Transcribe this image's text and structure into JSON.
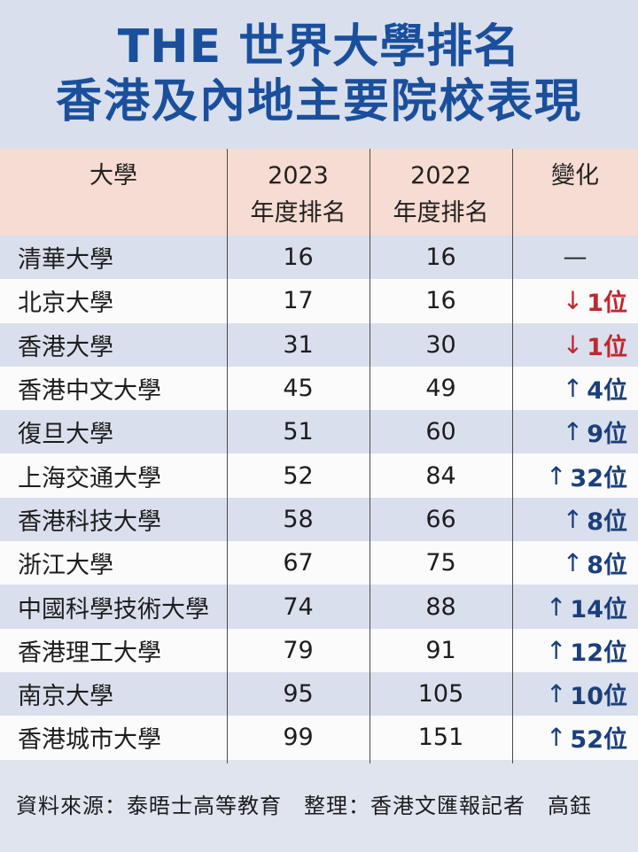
{
  "title": {
    "line1": "THE 世界大學排名",
    "line2": "香港及內地主要院校表現"
  },
  "table": {
    "headers": {
      "name": "大學",
      "rank_2023_year": "2023",
      "rank_2023_label": "年度排名",
      "rank_2022_year": "2022",
      "rank_2022_label": "年度排名",
      "change": "變化"
    },
    "rows": [
      {
        "name": "清華大學",
        "r2023": "16",
        "r2022": "16",
        "dir": "same",
        "arrow": "",
        "change": "—"
      },
      {
        "name": "北京大學",
        "r2023": "17",
        "r2022": "16",
        "dir": "down",
        "arrow": "↓",
        "change": "1位"
      },
      {
        "name": "香港大學",
        "r2023": "31",
        "r2022": "30",
        "dir": "down",
        "arrow": "↓",
        "change": "1位"
      },
      {
        "name": "香港中文大學",
        "r2023": "45",
        "r2022": "49",
        "dir": "up",
        "arrow": "↑",
        "change": "4位"
      },
      {
        "name": "復旦大學",
        "r2023": "51",
        "r2022": "60",
        "dir": "up",
        "arrow": "↑",
        "change": "9位"
      },
      {
        "name": "上海交通大學",
        "r2023": "52",
        "r2022": "84",
        "dir": "up",
        "arrow": "↑",
        "change": "32位"
      },
      {
        "name": "香港科技大學",
        "r2023": "58",
        "r2022": "66",
        "dir": "up",
        "arrow": "↑",
        "change": "8位"
      },
      {
        "name": "浙江大學",
        "r2023": "67",
        "r2022": "75",
        "dir": "up",
        "arrow": "↑",
        "change": "8位"
      },
      {
        "name": "中國科學技術大學",
        "r2023": "74",
        "r2022": "88",
        "dir": "up",
        "arrow": "↑",
        "change": "14位"
      },
      {
        "name": "香港理工大學",
        "r2023": "79",
        "r2022": "91",
        "dir": "up",
        "arrow": "↑",
        "change": "12位"
      },
      {
        "name": "南京大學",
        "r2023": "95",
        "r2022": "105",
        "dir": "up",
        "arrow": "↑",
        "change": "10位"
      },
      {
        "name": "香港城市大學",
        "r2023": "99",
        "r2022": "151",
        "dir": "up",
        "arrow": "↑",
        "change": "52位"
      }
    ]
  },
  "footer": {
    "text": "資料來源：泰晤士高等教育　整理：香港文匯報記者　高鈺"
  },
  "colors": {
    "title": "#1a4f9c",
    "header_bg": "#f6dcd2",
    "row_shade": "#d9dfec",
    "row_plain": "#fbfbfc",
    "up": "#1b3f7a",
    "down": "#c1272d"
  }
}
